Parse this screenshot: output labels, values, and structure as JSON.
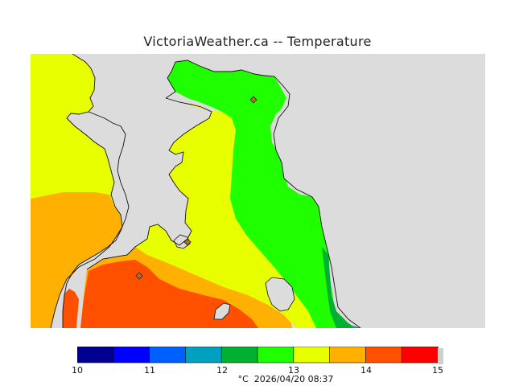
{
  "title": "VictoriaWeather.ca  --  Temperature",
  "legend": {
    "ticks": [
      "10",
      "11",
      "12",
      "13",
      "14",
      "15"
    ],
    "colors": [
      "#000090",
      "#0000ff",
      "#0060ff",
      "#00a0c0",
      "#00b030",
      "#20ff00",
      "#e8ff00",
      "#ffb000",
      "#ff5000",
      "#ff0000"
    ],
    "unit": "°C",
    "timestamp": "2026/04/20 08:37"
  },
  "map": {
    "land_color": "#dcdcdc",
    "markers": [
      "station",
      "station",
      "station"
    ]
  }
}
